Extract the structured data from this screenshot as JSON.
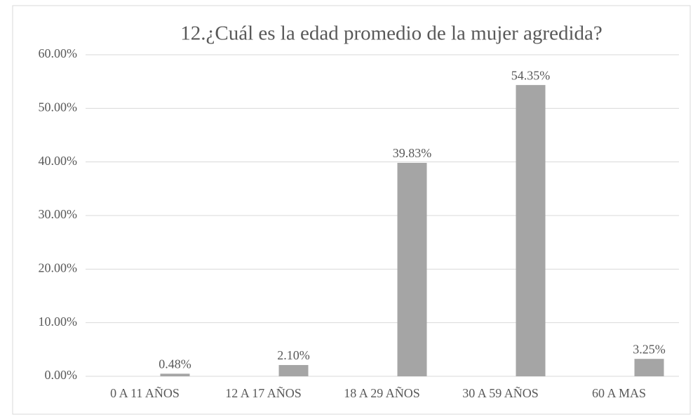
{
  "chart_data": {
    "type": "bar",
    "title": "12.¿Cuál es la edad promedio de la mujer agredida?",
    "categories": [
      "0 A 11 AÑOS",
      "12 A 17 AÑOS",
      "18 A 29 AÑOS",
      "30 A 59 AÑOS",
      "60 A MAS"
    ],
    "values": [
      0.48,
      2.1,
      39.83,
      54.35,
      3.25
    ],
    "value_labels": [
      "0.48%",
      "2.10%",
      "39.83%",
      "54.35%",
      "3.25%"
    ],
    "color": "#a5a5a5",
    "ylim": [
      0,
      60
    ],
    "yticks": [
      {
        "value": 0,
        "label": "0.00%"
      },
      {
        "value": 10,
        "label": "10.00%"
      },
      {
        "value": 20,
        "label": "20.00%"
      },
      {
        "value": 30,
        "label": "30.00%"
      },
      {
        "value": 40,
        "label": "40.00%"
      },
      {
        "value": 50,
        "label": "50.00%"
      },
      {
        "value": 60,
        "label": "60.00%"
      }
    ],
    "grid": true
  }
}
